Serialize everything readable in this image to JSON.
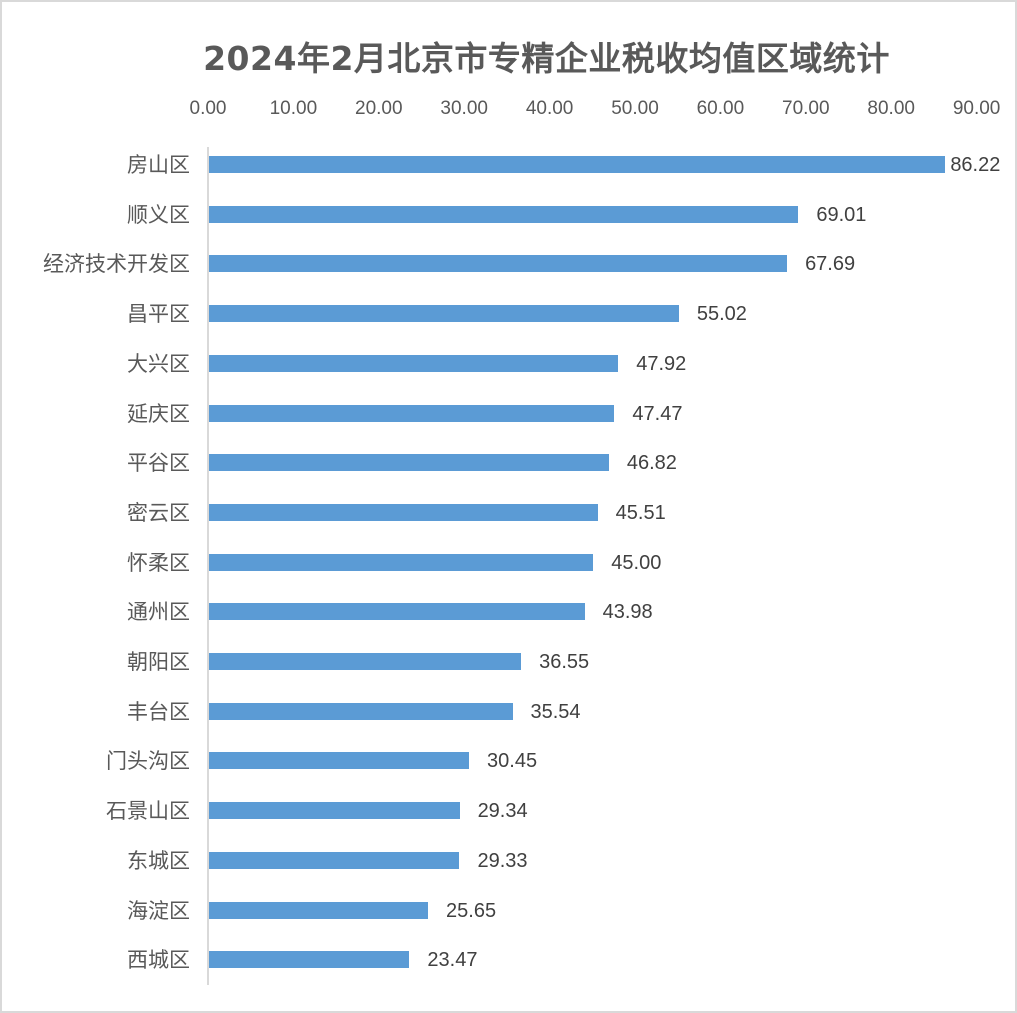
{
  "chart_data": {
    "type": "bar",
    "orientation": "horizontal",
    "title": "2024年2月北京市专精企业税收均值区域统计",
    "xlabel": "",
    "ylabel": "",
    "xlim": [
      0,
      90
    ],
    "x_ticks": [
      "0.00",
      "10.00",
      "20.00",
      "30.00",
      "40.00",
      "50.00",
      "60.00",
      "70.00",
      "80.00",
      "90.00"
    ],
    "x_axis_position": "top",
    "grid": false,
    "legend": null,
    "bar_color": "#5b9bd5",
    "categories": [
      "房山区",
      "顺义区",
      "经济技术开发区",
      "昌平区",
      "大兴区",
      "延庆区",
      "平谷区",
      "密云区",
      "怀柔区",
      "通州区",
      "朝阳区",
      "丰台区",
      "门头沟区",
      "石景山区",
      "东城区",
      "海淀区",
      "西城区"
    ],
    "values": [
      86.22,
      69.01,
      67.69,
      55.02,
      47.92,
      47.47,
      46.82,
      45.51,
      45.0,
      43.98,
      36.55,
      35.54,
      30.45,
      29.34,
      29.33,
      25.65,
      23.47
    ],
    "value_labels": [
      "86.22",
      "69.01",
      "67.69",
      "55.02",
      "47.92",
      "47.47",
      "46.82",
      "45.51",
      "45.00",
      "43.98",
      "36.55",
      "35.54",
      "30.45",
      "29.34",
      "29.33",
      "25.65",
      "23.47"
    ]
  }
}
